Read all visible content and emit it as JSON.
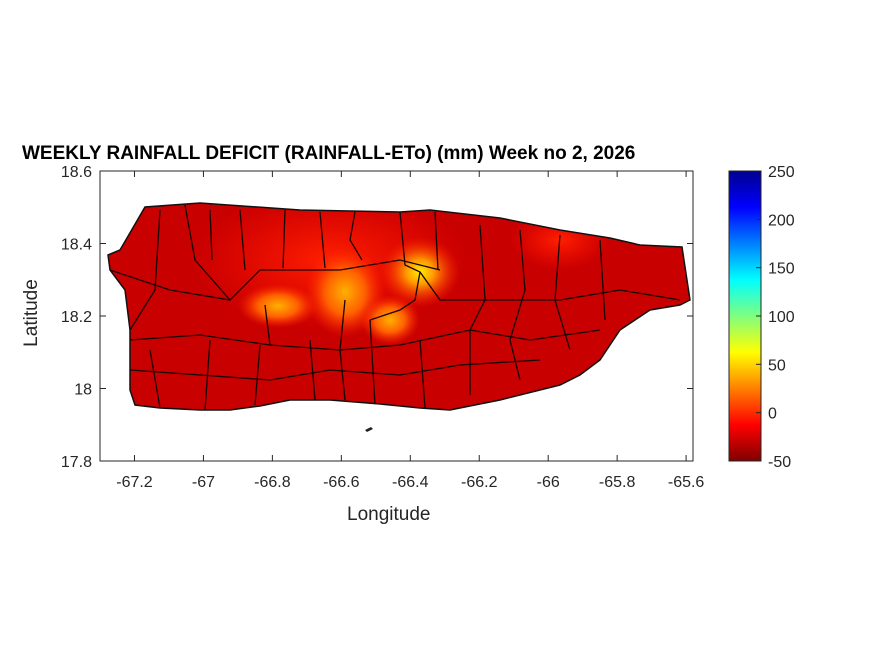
{
  "chart_data": {
    "type": "heatmap",
    "title": "WEEKLY RAINFALL DEFICIT (RAINFALL-ETo) (mm) Week no 2, 2026",
    "xlabel": "Longitude",
    "ylabel": "Latitude",
    "xlim": [
      -67.3,
      -65.58
    ],
    "ylim": [
      17.8,
      18.6
    ],
    "xticks": [
      -67.2,
      -67,
      -66.8,
      -66.6,
      -66.4,
      -66.2,
      -66,
      -65.8,
      -65.6
    ],
    "xtick_labels": [
      "-67.2",
      "-67",
      "-66.8",
      "-66.6",
      "-66.4",
      "-66.2",
      "-66",
      "-65.8",
      "-65.6"
    ],
    "yticks": [
      17.8,
      18,
      18.2,
      18.4,
      18.6
    ],
    "ytick_labels": [
      "17.8",
      "18",
      "18.2",
      "18.4",
      "18.6"
    ],
    "colorbar": {
      "colormap": "jet-reversed",
      "clim": [
        -50,
        250
      ],
      "ticks": [
        -50,
        0,
        50,
        100,
        150,
        200,
        250
      ],
      "tick_labels": [
        "-50",
        "0",
        "50",
        "100",
        "150",
        "200",
        "250"
      ]
    },
    "hotspots": [
      {
        "lon": -66.37,
        "lat": 18.32,
        "value": 40
      },
      {
        "lon": -66.57,
        "lat": 18.26,
        "value": 15
      },
      {
        "lon": -66.8,
        "lat": 18.22,
        "value": 10
      }
    ],
    "base_value": -40
  }
}
